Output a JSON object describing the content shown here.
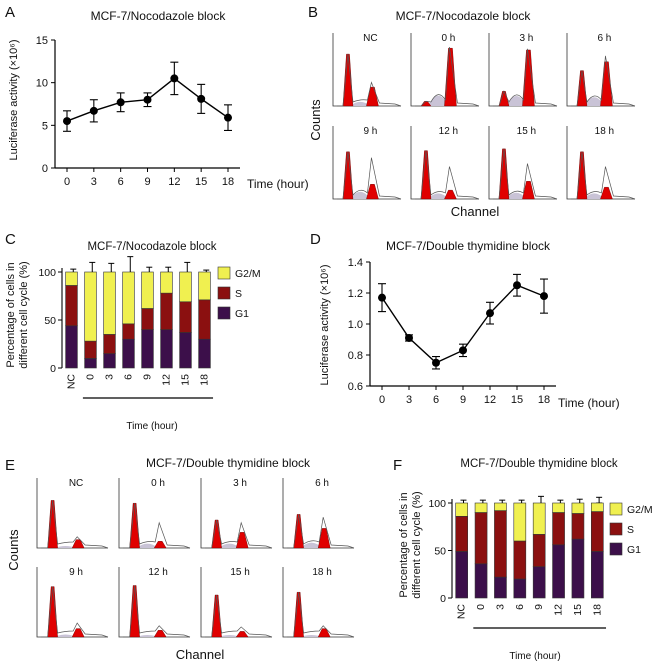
{
  "panels": {
    "A": {
      "letter": "A",
      "title": "MCF-7/Nocodazole block",
      "ylabel": "Luciferase activity (×10⁶)",
      "xlabel": "Time (hour)",
      "yticks": [
        0,
        5,
        10,
        15
      ],
      "categories": [
        "0",
        "3",
        "6",
        "9",
        "12",
        "15",
        "18"
      ]
    },
    "B": {
      "letter": "B",
      "title": "MCF-7/Nocodazole block",
      "ylabel": "Counts",
      "xlabel": "Channel",
      "labels": [
        "NC",
        "0 h",
        "3 h",
        "6 h",
        "9 h",
        "12 h",
        "15 h",
        "18 h"
      ]
    },
    "C": {
      "letter": "C",
      "title": "MCF-7/Nocodazole block",
      "ylabel1": "Percentage of cells in",
      "ylabel2": "different cell cycle (%)",
      "xlabel": "Time (hour)",
      "yticks": [
        0,
        50,
        100
      ],
      "categories": [
        "NC",
        "0",
        "3",
        "6",
        "9",
        "12",
        "15",
        "18"
      ],
      "legend": [
        "G2/M",
        "S",
        "G1"
      ]
    },
    "D": {
      "letter": "D",
      "title": "MCF-7/Double thymidine block",
      "ylabel": "Luciferase activity (×10⁶)",
      "xlabel": "Time (hour)",
      "yticks": [
        "0.6",
        "0.8",
        "1.0",
        "1.2",
        "1.4"
      ],
      "categories": [
        "0",
        "3",
        "6",
        "9",
        "12",
        "15",
        "18"
      ]
    },
    "E": {
      "letter": "E",
      "title": "MCF-7/Double thymidine block",
      "ylabel": "Counts",
      "xlabel": "Channel",
      "labels": [
        "NC",
        "0 h",
        "3 h",
        "6 h",
        "9 h",
        "12 h",
        "15 h",
        "18 h"
      ]
    },
    "F": {
      "letter": "F",
      "title": "MCF-7/Double thymidine block",
      "ylabel1": "Percentage of cells in",
      "ylabel2": "different cell cycle (%)",
      "xlabel": "Time (hour)",
      "yticks": [
        0,
        50,
        100
      ],
      "categories": [
        "NC",
        "0",
        "3",
        "6",
        "9",
        "12",
        "15",
        "18"
      ],
      "legend": [
        "G2/M",
        "S",
        "G1"
      ]
    }
  },
  "colors": {
    "g2m": "#f0f050",
    "s": "#8b1010",
    "g1": "#3c0f4a",
    "peak": "#e00000",
    "shade": "#c9c3d6"
  },
  "chart_data": [
    {
      "panel": "A",
      "type": "line",
      "title": "MCF-7/Nocodazole block",
      "xlabel": "Time (hour)",
      "ylabel": "Luciferase activity (×10⁶)",
      "x": [
        0,
        3,
        6,
        9,
        12,
        15,
        18
      ],
      "values": [
        5.5,
        6.7,
        7.7,
        8.0,
        10.5,
        8.1,
        5.9
      ],
      "errors": [
        1.2,
        1.3,
        1.1,
        0.8,
        1.9,
        1.7,
        1.5
      ],
      "ylim": [
        0,
        15
      ]
    },
    {
      "panel": "C",
      "type": "bar",
      "stacked": true,
      "title": "MCF-7/Nocodazole block",
      "xlabel": "Time (hour)",
      "ylabel": "Percentage of cells in different cell cycle (%)",
      "categories": [
        "NC",
        "0",
        "3",
        "6",
        "9",
        "12",
        "15",
        "18"
      ],
      "series": [
        {
          "name": "G1",
          "values": [
            44,
            10,
            15,
            30,
            40,
            40,
            37,
            30
          ],
          "errors": [
            3,
            3,
            3,
            4,
            3,
            3,
            3,
            2
          ]
        },
        {
          "name": "S",
          "values": [
            42,
            18,
            20,
            16,
            22,
            38,
            32,
            41
          ],
          "errors": [
            2,
            6,
            9,
            8,
            4,
            3,
            4,
            2
          ]
        },
        {
          "name": "G2/M",
          "values": [
            14,
            72,
            65,
            54,
            38,
            22,
            31,
            29
          ],
          "errors": [
            3,
            10,
            9,
            16,
            5,
            5,
            10,
            2
          ]
        }
      ],
      "ylim": [
        0,
        100
      ]
    },
    {
      "panel": "D",
      "type": "line",
      "title": "MCF-7/Double thymidine block",
      "xlabel": "Time (hour)",
      "ylabel": "Luciferase activity (×10⁶)",
      "x": [
        0,
        3,
        6,
        9,
        12,
        15,
        18
      ],
      "values": [
        1.17,
        0.91,
        0.75,
        0.83,
        1.07,
        1.25,
        1.18
      ],
      "errors": [
        0.09,
        0.02,
        0.04,
        0.04,
        0.07,
        0.07,
        0.11
      ],
      "ylim": [
        0.6,
        1.4
      ]
    },
    {
      "panel": "F",
      "type": "bar",
      "stacked": true,
      "title": "MCF-7/Double thymidine block",
      "xlabel": "Time (hour)",
      "ylabel": "Percentage of cells in different cell cycle (%)",
      "categories": [
        "NC",
        "0",
        "3",
        "6",
        "9",
        "12",
        "15",
        "18"
      ],
      "series": [
        {
          "name": "G1",
          "values": [
            49,
            36,
            22,
            20,
            33,
            56,
            62,
            49
          ],
          "errors": [
            2,
            3,
            3,
            3,
            9,
            3,
            3,
            3
          ]
        },
        {
          "name": "S",
          "values": [
            37,
            54,
            70,
            40,
            34,
            34,
            27,
            42
          ],
          "errors": [
            3,
            5,
            3,
            3,
            4,
            3,
            3,
            9
          ]
        },
        {
          "name": "G2/M",
          "values": [
            14,
            10,
            8,
            40,
            33,
            10,
            11,
            9
          ],
          "errors": [
            3,
            3,
            3,
            3,
            7,
            3,
            4,
            6
          ]
        }
      ],
      "ylim": [
        0,
        100
      ]
    },
    {
      "panel": "B",
      "type": "histogram-grid",
      "title": "MCF-7/Nocodazole block",
      "xlabel": "Channel",
      "ylabel": "Counts",
      "labels": [
        "NC",
        "0 h",
        "3 h",
        "6 h",
        "9 h",
        "12 h",
        "15 h",
        "18 h"
      ],
      "g1_peak_height": [
        0.88,
        0.08,
        0.25,
        0.6,
        0.8,
        0.82,
        0.85,
        0.8
      ],
      "g2_peak_height": [
        0.32,
        0.98,
        0.95,
        0.75,
        0.25,
        0.15,
        0.3,
        0.2
      ],
      "g2_peak_overlay": [
        0.4,
        1.0,
        0.97,
        0.85,
        0.7,
        0.55,
        0.6,
        0.55
      ]
    },
    {
      "panel": "E",
      "type": "histogram-grid",
      "title": "MCF-7/Double thymidine block",
      "xlabel": "Channel",
      "ylabel": "Counts",
      "labels": [
        "NC",
        "0 h",
        "3 h",
        "6 h",
        "9 h",
        "12 h",
        "15 h",
        "18 h"
      ],
      "g1_peak_height": [
        0.85,
        0.8,
        0.5,
        0.6,
        0.9,
        0.92,
        0.75,
        0.8
      ],
      "g2_peak_height": [
        0.15,
        0.12,
        0.28,
        0.35,
        0.15,
        0.12,
        0.1,
        0.15
      ],
      "g2_peak_overlay": [
        0.2,
        0.45,
        0.45,
        0.55,
        0.25,
        0.2,
        0.18,
        0.2
      ]
    }
  ]
}
